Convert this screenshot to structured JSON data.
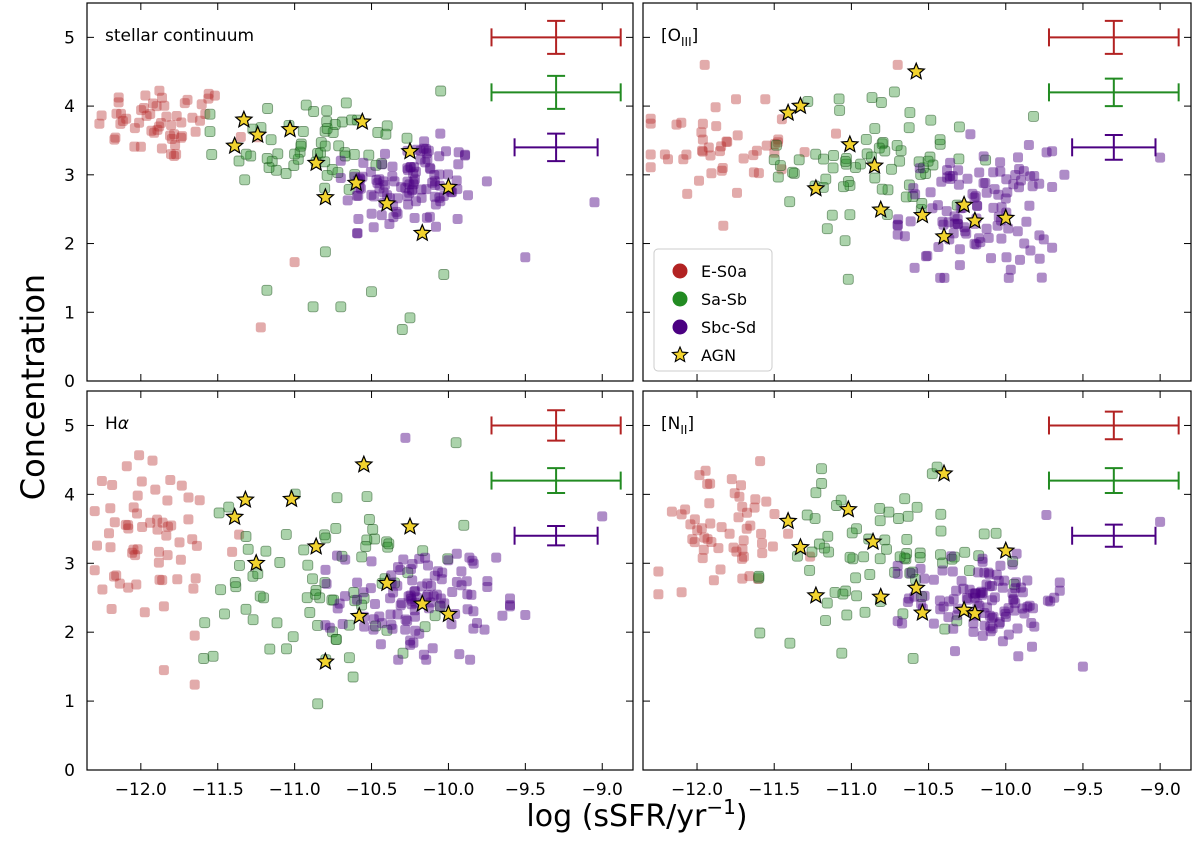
{
  "chart_data": {
    "type": "scatter",
    "xlabel": "log (sSFR/yr⁻¹)",
    "ylabel": "Concentration",
    "xlim": [
      -12.35,
      -8.8
    ],
    "ylim": [
      0,
      5.5
    ],
    "xticks": [
      -12.0,
      -11.5,
      -11.0,
      -10.5,
      -10.0,
      -9.5,
      -9.0
    ],
    "xtick_labels": [
      "−12.0",
      "−11.5",
      "−11.0",
      "−10.5",
      "−10.0",
      "−9.5",
      "−9.0"
    ],
    "yticks": [
      0,
      1,
      2,
      3,
      4,
      5
    ],
    "ytick_labels": [
      "0",
      "1",
      "2",
      "3",
      "4",
      "5"
    ],
    "legend": {
      "location": "inside top-right panel, lower-left",
      "entries": [
        {
          "name": "E-S0a",
          "color": "#b22222",
          "marker": "circle"
        },
        {
          "name": "Sa-Sb",
          "color": "#228b22",
          "marker": "circle"
        },
        {
          "name": "Sbc-Sd",
          "color": "#4b0082",
          "marker": "circle"
        },
        {
          "name": "AGN",
          "color": "#f2d32e",
          "marker": "star"
        }
      ]
    },
    "panels": [
      {
        "label": "stellar continuum",
        "errorbars": [
          {
            "group": "E-S0a",
            "x": -9.3,
            "xerr": [
              0.42,
              0.42
            ],
            "y": 5.0,
            "yerr": 0.24
          },
          {
            "group": "Sa-Sb",
            "x": -9.3,
            "xerr": [
              0.42,
              0.42
            ],
            "y": 4.2,
            "yerr": 0.24
          },
          {
            "group": "Sbc-Sd",
            "x": -9.3,
            "xerr": [
              0.27,
              0.27
            ],
            "y": 3.4,
            "yerr": 0.2
          }
        ],
        "agn": [
          [
            -11.33,
            3.8
          ],
          [
            -11.39,
            3.42
          ],
          [
            -11.24,
            3.58
          ],
          [
            -11.03,
            3.66
          ],
          [
            -10.86,
            3.17
          ],
          [
            -10.8,
            2.67
          ],
          [
            -10.6,
            2.88
          ],
          [
            -10.56,
            3.77
          ],
          [
            -10.4,
            2.58
          ],
          [
            -10.25,
            3.34
          ],
          [
            -10.17,
            2.15
          ],
          [
            -10.0,
            2.82
          ]
        ],
        "clusters": [
          {
            "group": "E-S0a",
            "n": 55,
            "cx": -11.85,
            "cy": 3.75,
            "sx": 0.22,
            "sy": 0.28,
            "xmin": -12.28,
            "xmax": -10.85,
            "ymin": 2.9,
            "ymax": 4.3,
            "extra": [
              [
                -11.22,
                0.78
              ],
              [
                -11.0,
                1.73
              ],
              [
                -11.35,
                3.55
              ]
            ]
          },
          {
            "group": "Sa-Sb",
            "n": 60,
            "cx": -10.9,
            "cy": 3.45,
            "sx": 0.35,
            "sy": 0.38,
            "xmin": -11.55,
            "xmax": -9.85,
            "ymin": 2.4,
            "ymax": 4.25,
            "extra": [
              [
                -11.18,
                1.32
              ],
              [
                -10.8,
                1.88
              ],
              [
                -10.7,
                1.08
              ],
              [
                -10.88,
                1.08
              ],
              [
                -10.5,
                1.3
              ],
              [
                -10.3,
                0.75
              ],
              [
                -10.25,
                0.92
              ],
              [
                -10.03,
                1.55
              ],
              [
                -10.05,
                4.22
              ]
            ]
          },
          {
            "group": "Sbc-Sd",
            "n": 110,
            "cx": -10.25,
            "cy": 2.85,
            "sx": 0.22,
            "sy": 0.35,
            "xmin": -10.7,
            "xmax": -9.75,
            "ymin": 2.15,
            "ymax": 3.6,
            "extra": [
              [
                -9.05,
                2.6
              ],
              [
                -9.5,
                1.8
              ]
            ]
          }
        ]
      },
      {
        "label": "[O III]",
        "label_main": "[O",
        "label_sub": "III",
        "label_close": "]",
        "errorbars": [
          {
            "group": "E-S0a",
            "x": -9.3,
            "xerr": [
              0.42,
              0.42
            ],
            "y": 5.0,
            "yerr": 0.24
          },
          {
            "group": "Sa-Sb",
            "x": -9.3,
            "xerr": [
              0.42,
              0.42
            ],
            "y": 4.2,
            "yerr": 0.2
          },
          {
            "group": "Sbc-Sd",
            "x": -9.3,
            "xerr": [
              0.27,
              0.27
            ],
            "y": 3.4,
            "yerr": 0.18
          }
        ],
        "agn": [
          [
            -11.41,
            3.9
          ],
          [
            -11.33,
            4.0
          ],
          [
            -11.23,
            2.8
          ],
          [
            -11.01,
            3.44
          ],
          [
            -10.85,
            3.13
          ],
          [
            -10.81,
            2.49
          ],
          [
            -10.54,
            2.41
          ],
          [
            -10.4,
            2.1
          ],
          [
            -10.27,
            2.56
          ],
          [
            -10.2,
            2.33
          ],
          [
            -10.0,
            2.37
          ],
          [
            -10.58,
            4.5
          ]
        ],
        "clusters": [
          {
            "group": "E-S0a",
            "n": 45,
            "cx": -11.9,
            "cy": 3.4,
            "sx": 0.25,
            "sy": 0.35,
            "xmin": -12.3,
            "xmax": -11.2,
            "ymin": 2.6,
            "ymax": 4.1,
            "extra": [
              [
                -11.95,
                4.6
              ],
              [
                -11.83,
                2.26
              ],
              [
                -10.7,
                4.6
              ],
              [
                -11.1,
                3.6
              ]
            ]
          },
          {
            "group": "Sa-Sb",
            "n": 70,
            "cx": -10.8,
            "cy": 3.2,
            "sx": 0.32,
            "sy": 0.5,
            "xmin": -11.5,
            "xmax": -9.85,
            "ymin": 2.0,
            "ymax": 4.6,
            "extra": [
              [
                -11.02,
                1.48
              ],
              [
                -9.82,
                3.85
              ]
            ]
          },
          {
            "group": "Sbc-Sd",
            "n": 110,
            "cx": -10.2,
            "cy": 2.45,
            "sx": 0.24,
            "sy": 0.45,
            "xmin": -10.7,
            "xmax": -9.7,
            "ymin": 1.5,
            "ymax": 4.45,
            "extra": [
              [
                -9.0,
                3.25
              ],
              [
                -9.78,
                1.78
              ],
              [
                -9.62,
                3.0
              ]
            ]
          }
        ]
      },
      {
        "label": "Hα",
        "errorbars": [
          {
            "group": "E-S0a",
            "x": -9.3,
            "xerr": [
              0.42,
              0.42
            ],
            "y": 5.0,
            "yerr": 0.22
          },
          {
            "group": "Sa-Sb",
            "x": -9.3,
            "xerr": [
              0.42,
              0.42
            ],
            "y": 4.2,
            "yerr": 0.18
          },
          {
            "group": "Sbc-Sd",
            "x": -9.3,
            "xerr": [
              0.27,
              0.27
            ],
            "y": 3.4,
            "yerr": 0.14
          }
        ],
        "agn": [
          [
            -11.39,
            3.67
          ],
          [
            -11.32,
            3.92
          ],
          [
            -11.25,
            3.0
          ],
          [
            -11.02,
            3.93
          ],
          [
            -10.86,
            3.24
          ],
          [
            -10.8,
            1.57
          ],
          [
            -10.58,
            2.23
          ],
          [
            -10.55,
            4.43
          ],
          [
            -10.4,
            2.71
          ],
          [
            -10.25,
            3.53
          ],
          [
            -10.17,
            2.41
          ],
          [
            -10.0,
            2.26
          ]
        ],
        "clusters": [
          {
            "group": "E-S0a",
            "n": 60,
            "cx": -11.9,
            "cy": 3.3,
            "sx": 0.28,
            "sy": 0.6,
            "xmin": -12.3,
            "xmax": -11.0,
            "ymin": 2.1,
            "ymax": 4.6,
            "extra": [
              [
                -11.85,
                1.45
              ],
              [
                -11.65,
                1.24
              ],
              [
                -11.65,
                1.95
              ],
              [
                -12.25,
                2.62
              ]
            ]
          },
          {
            "group": "Sa-Sb",
            "n": 75,
            "cx": -10.8,
            "cy": 2.75,
            "sx": 0.38,
            "sy": 0.6,
            "xmin": -11.6,
            "xmax": -9.9,
            "ymin": 1.6,
            "ymax": 4.1,
            "extra": [
              [
                -11.53,
                1.65
              ],
              [
                -10.85,
                0.96
              ],
              [
                -10.62,
                1.35
              ],
              [
                -9.95,
                4.75
              ]
            ]
          },
          {
            "group": "Sbc-Sd",
            "n": 110,
            "cx": -10.2,
            "cy": 2.45,
            "sx": 0.25,
            "sy": 0.4,
            "xmin": -10.8,
            "xmax": -9.6,
            "ymin": 1.6,
            "ymax": 3.6,
            "extra": [
              [
                -10.28,
                4.82
              ],
              [
                -9.0,
                3.68
              ],
              [
                -9.5,
                2.25
              ]
            ]
          }
        ]
      },
      {
        "label": "[N II]",
        "label_main": "[N",
        "label_sub": "II",
        "label_close": "]",
        "errorbars": [
          {
            "group": "E-S0a",
            "x": -9.3,
            "xerr": [
              0.42,
              0.42
            ],
            "y": 5.0,
            "yerr": 0.2
          },
          {
            "group": "Sa-Sb",
            "x": -9.3,
            "xerr": [
              0.42,
              0.42
            ],
            "y": 4.2,
            "yerr": 0.18
          },
          {
            "group": "Sbc-Sd",
            "x": -9.3,
            "xerr": [
              0.27,
              0.27
            ],
            "y": 3.4,
            "yerr": 0.16
          }
        ],
        "agn": [
          [
            -11.41,
            3.61
          ],
          [
            -11.33,
            3.23
          ],
          [
            -11.23,
            2.53
          ],
          [
            -11.02,
            3.78
          ],
          [
            -10.86,
            3.31
          ],
          [
            -10.81,
            2.51
          ],
          [
            -10.58,
            2.64
          ],
          [
            -10.54,
            2.28
          ],
          [
            -10.4,
            4.3
          ],
          [
            -10.27,
            2.32
          ],
          [
            -10.2,
            2.27
          ],
          [
            -10.0,
            3.18
          ]
        ],
        "clusters": [
          {
            "group": "E-S0a",
            "n": 55,
            "cx": -11.8,
            "cy": 3.5,
            "sx": 0.28,
            "sy": 0.45,
            "xmin": -12.25,
            "xmax": -11.0,
            "ymin": 2.4,
            "ymax": 4.5,
            "extra": [
              [
                -12.25,
                2.88
              ],
              [
                -12.1,
                2.58
              ]
            ]
          },
          {
            "group": "Sa-Sb",
            "n": 75,
            "cx": -10.8,
            "cy": 3.05,
            "sx": 0.38,
            "sy": 0.55,
            "xmin": -11.6,
            "xmax": -9.85,
            "ymin": 1.6,
            "ymax": 4.85,
            "extra": [
              [
                -11.03,
                2.25
              ],
              [
                -10.6,
                1.62
              ]
            ]
          },
          {
            "group": "Sbc-Sd",
            "n": 110,
            "cx": -10.15,
            "cy": 2.5,
            "sx": 0.25,
            "sy": 0.35,
            "xmin": -10.7,
            "xmax": -9.65,
            "ymin": 1.65,
            "ymax": 3.9,
            "extra": [
              [
                -9.0,
                3.6
              ],
              [
                -9.5,
                1.5
              ]
            ]
          }
        ]
      }
    ],
    "colors": {
      "E-S0a": "#b22222",
      "Sa-Sb": "#228b22",
      "Sbc-Sd": "#4b0082",
      "AGN": "#f2d32e"
    }
  }
}
